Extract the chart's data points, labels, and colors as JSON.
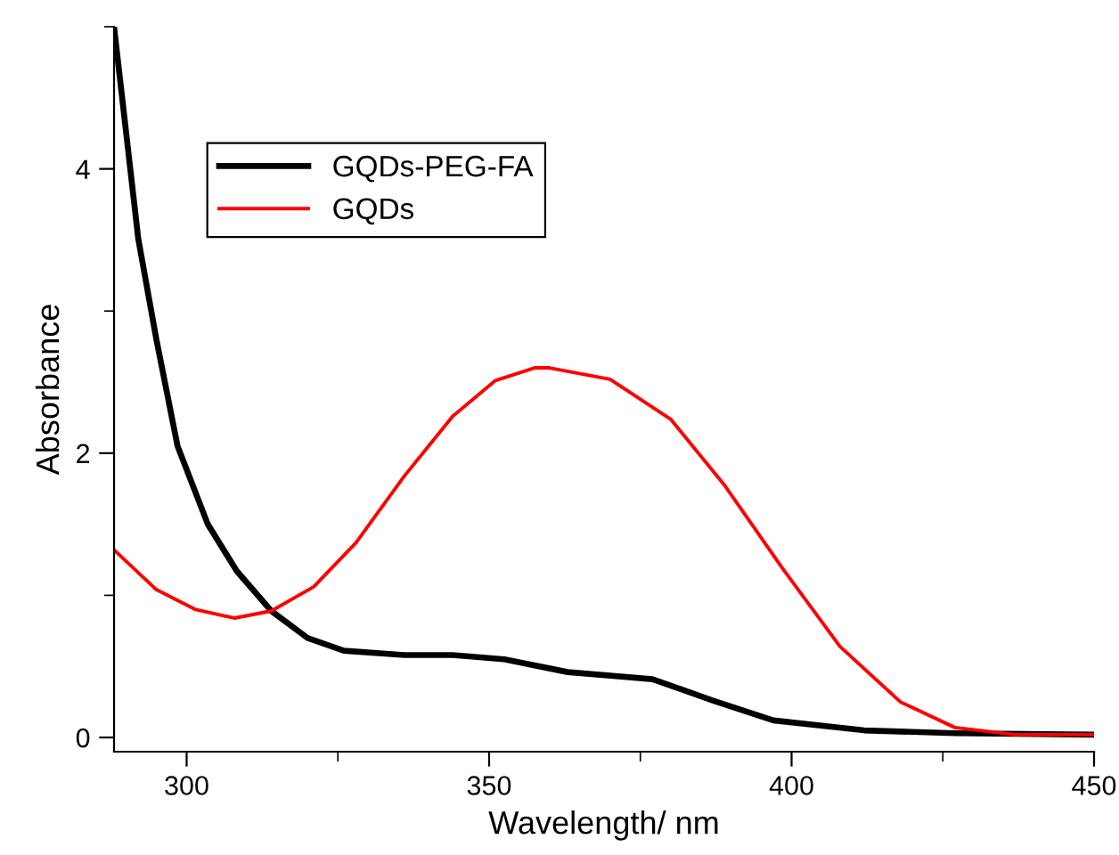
{
  "chart_data": {
    "type": "line",
    "xlabel": "Wavelength/ nm",
    "ylabel": "Absorbance",
    "xlim": [
      288,
      450
    ],
    "ylim": [
      -0.1,
      5.0
    ],
    "xticks": [
      300,
      350,
      400,
      450
    ],
    "yticks": [
      0,
      2,
      4
    ],
    "grid": false,
    "legend": "top left",
    "marker": "none",
    "line_style": "solid",
    "series": [
      {
        "name": "GQDs-PEG-FA",
        "color": "#000000",
        "x": [
          288,
          292,
          295,
          298.5,
          303.5,
          308.3,
          314,
          320,
          326,
          336,
          344,
          352.5,
          363,
          377,
          387,
          397,
          412,
          427,
          450
        ],
        "values": [
          5.0,
          3.51,
          2.8,
          2.05,
          1.5,
          1.17,
          0.89,
          0.7,
          0.61,
          0.58,
          0.58,
          0.55,
          0.46,
          0.41,
          0.26,
          0.12,
          0.05,
          0.03,
          0.02
        ]
      },
      {
        "name": "GQDs",
        "color": "#ff0000",
        "x": [
          288,
          295,
          301.5,
          307.9,
          314,
          321,
          328,
          336,
          344,
          351,
          357.5,
          360,
          370,
          380,
          389,
          398.5,
          408,
          418,
          427,
          437,
          450
        ],
        "values": [
          1.32,
          1.04,
          0.9,
          0.84,
          0.89,
          1.06,
          1.37,
          1.84,
          2.26,
          2.51,
          2.6,
          2.6,
          2.52,
          2.24,
          1.77,
          1.19,
          0.64,
          0.25,
          0.07,
          0.02,
          0.02
        ]
      }
    ]
  }
}
